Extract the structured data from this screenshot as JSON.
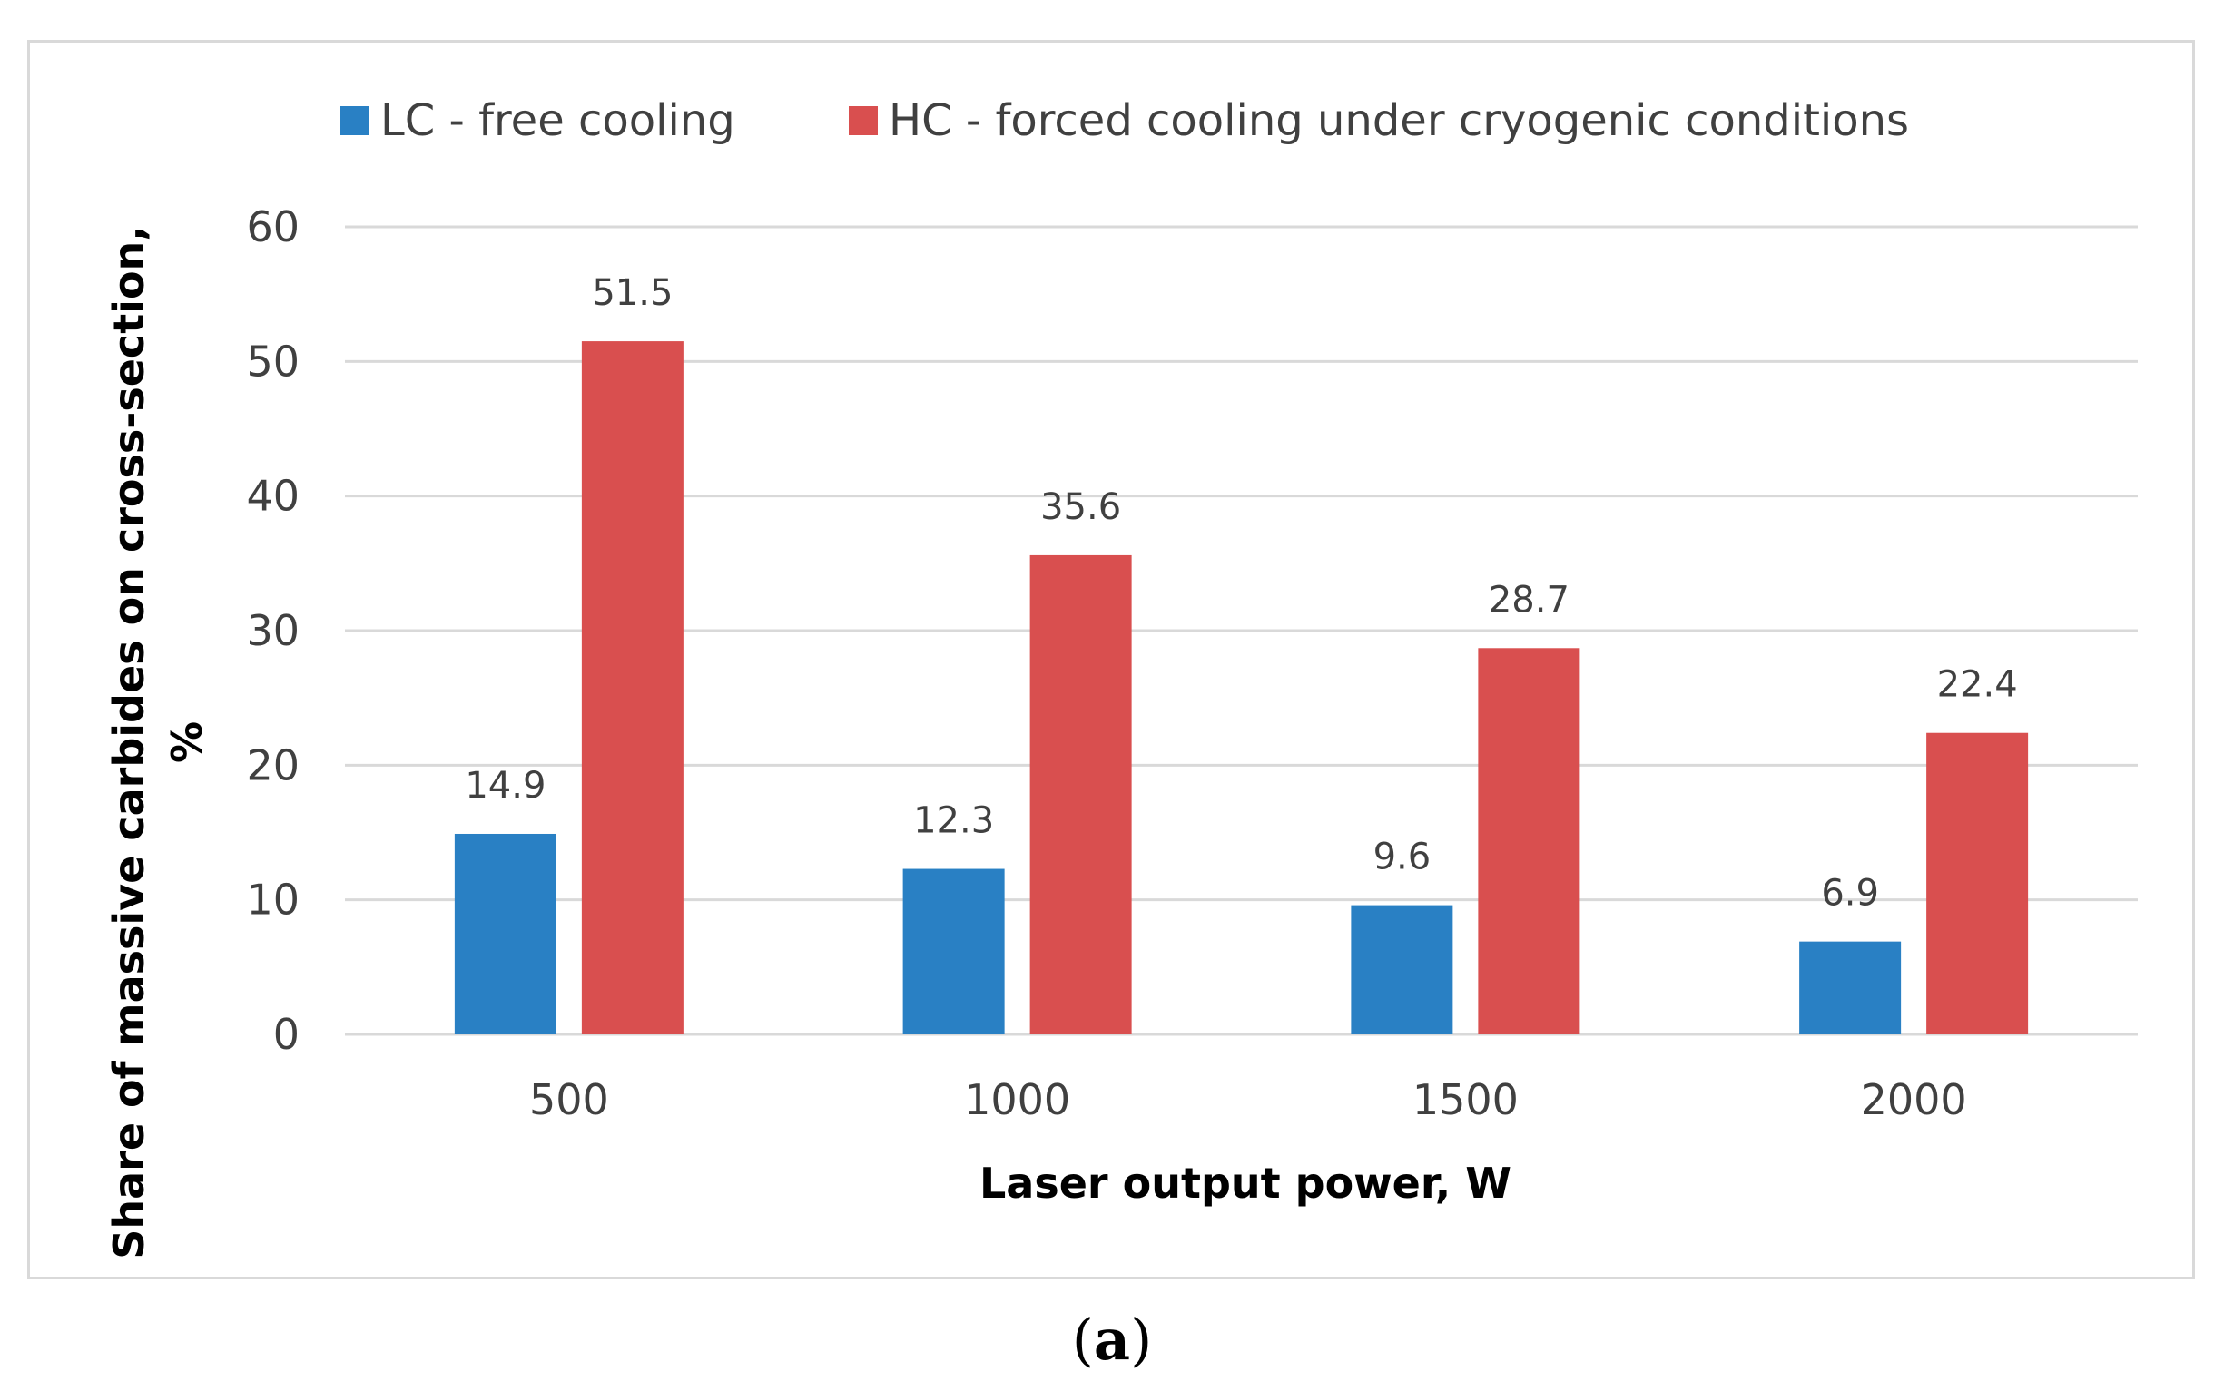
{
  "chart_data": {
    "type": "bar",
    "title": "",
    "xlabel": "Laser output power, W",
    "ylabel_line1": "Share of massive carbides on cross-section,",
    "ylabel_line2": "%",
    "categories": [
      "500",
      "1000",
      "1500",
      "2000"
    ],
    "series": [
      {
        "name": "LC - free cooling",
        "color": "#2980c4",
        "values": [
          14.9,
          12.3,
          9.6,
          6.9
        ]
      },
      {
        "name": "HC - forced cooling under cryogenic conditions",
        "color": "#d94f4f",
        "values": [
          51.5,
          35.6,
          28.7,
          22.4
        ]
      }
    ],
    "ylim": [
      0,
      60
    ],
    "yticks": [
      0,
      10,
      20,
      30,
      40,
      50,
      60
    ],
    "grid": true,
    "legend": "top"
  },
  "panel_label": {
    "open": "(",
    "letter": "a",
    "close": ")"
  },
  "colors": {
    "grid": "#d9d9d9",
    "text": "#404040"
  }
}
